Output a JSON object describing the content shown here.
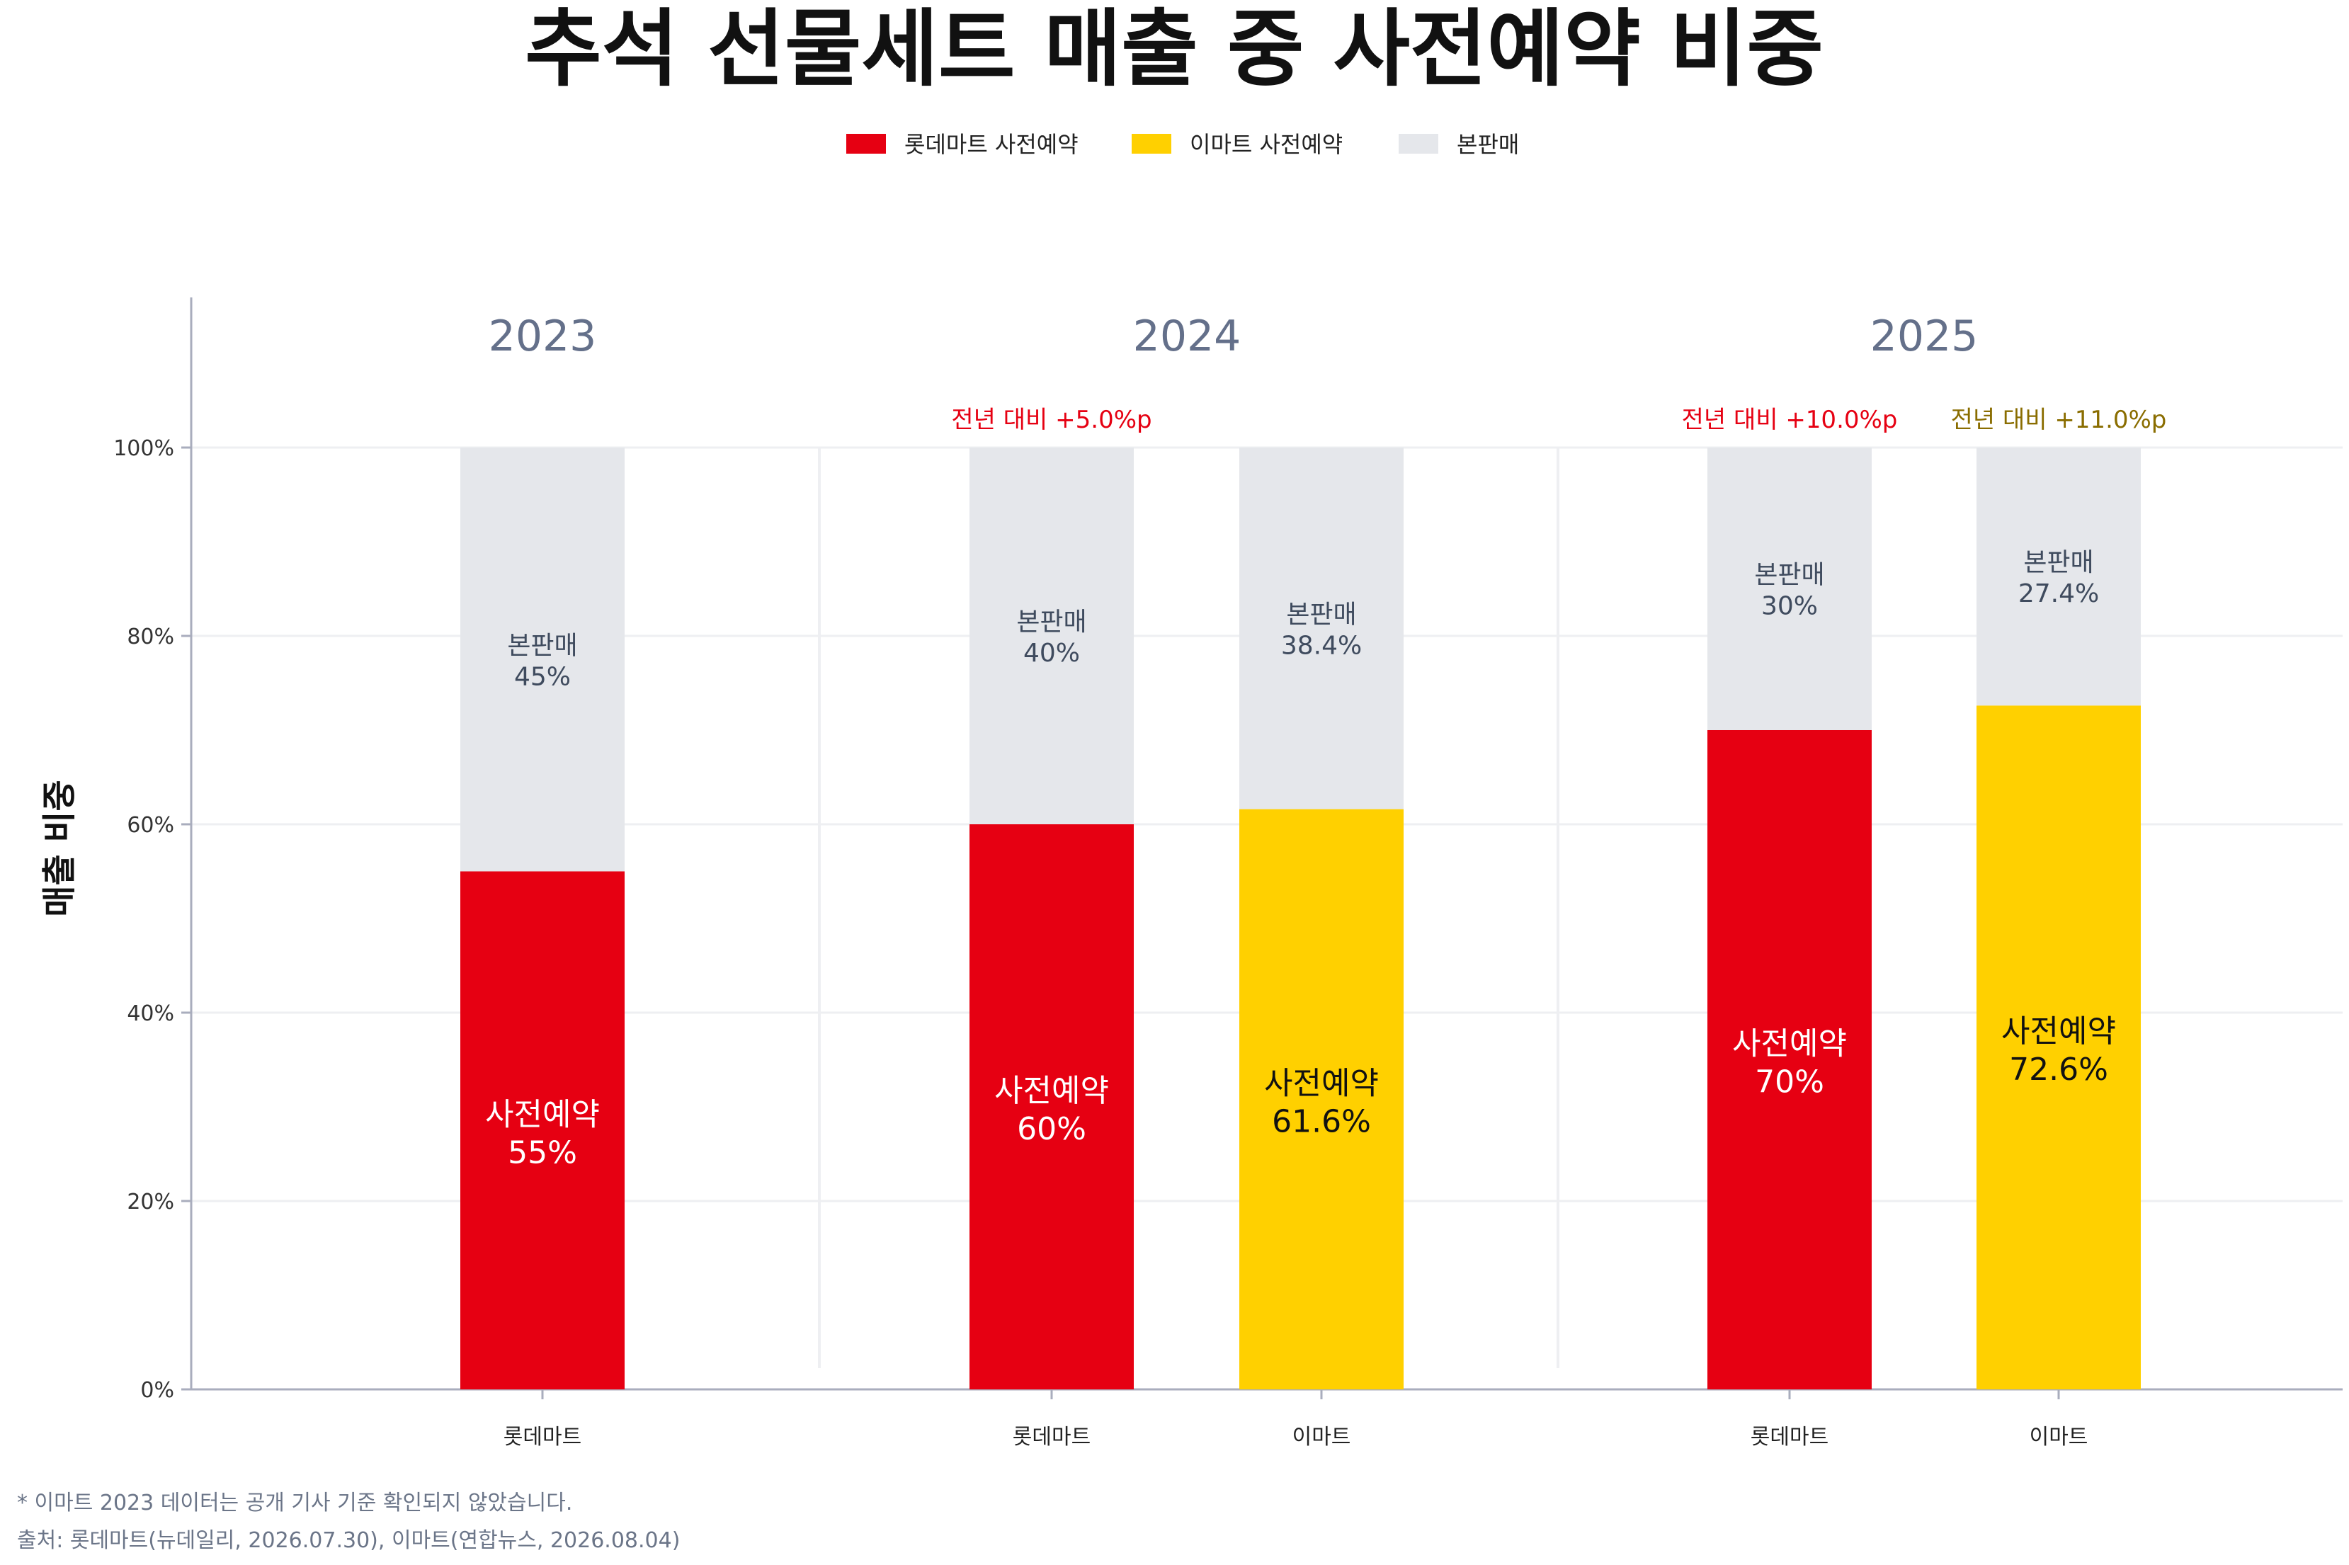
{
  "chart_data": {
    "type": "bar",
    "stacked": true,
    "title": "추석 선물세트 매출 중 사전예약 비중",
    "ylabel": "매출 비중",
    "ylim": [
      0,
      100
    ],
    "yticks": [
      "0%",
      "20%",
      "40%",
      "60%",
      "80%",
      "100%"
    ],
    "grid": true,
    "legend": {
      "placement": "top-center",
      "items": [
        {
          "label": "롯데마트 사전예약",
          "color": "#e60012"
        },
        {
          "label": "이마트 사전예약",
          "color": "#ffd000"
        },
        {
          "label": "본판매",
          "color": "#e5e7eb"
        }
      ]
    },
    "groups": [
      {
        "year": "2023",
        "delta_labels": [],
        "bars": [
          {
            "category": "롯데마트",
            "preorder": 55,
            "preorder_text": "55%",
            "main": 45,
            "main_text": "45%",
            "color": "#e60012"
          }
        ]
      },
      {
        "year": "2024",
        "delta_labels": [
          {
            "text": "전년 대비 +5.0%p",
            "color": "#e60012",
            "bar": 0
          }
        ],
        "bars": [
          {
            "category": "롯데마트",
            "preorder": 60,
            "preorder_text": "60%",
            "main": 40,
            "main_text": "40%",
            "color": "#e60012"
          },
          {
            "category": "이마트",
            "preorder": 61.6,
            "preorder_text": "61.6%",
            "main": 38.4,
            "main_text": "38.4%",
            "color": "#ffd000"
          }
        ]
      },
      {
        "year": "2025",
        "delta_labels": [
          {
            "text": "전년 대비 +10.0%p",
            "color": "#e60012",
            "bar": 0
          },
          {
            "text": "전년 대비 +11.0%p",
            "color": "#8a6d00",
            "bar": 1
          }
        ],
        "bars": [
          {
            "category": "롯데마트",
            "preorder": 70,
            "preorder_text": "70%",
            "main": 30,
            "main_text": "30%",
            "color": "#e60012"
          },
          {
            "category": "이마트",
            "preorder": 72.6,
            "preorder_text": "72.6%",
            "main": 27.4,
            "main_text": "27.4%",
            "color": "#ffd000"
          }
        ]
      }
    ],
    "segment_names": {
      "preorder": "사전예약",
      "main": "본판매"
    },
    "notes": [
      "* 이마트 2023 데이터는 공개 기사 기준 확인되지 않았습니다.",
      "출처: 롯데마트(뉴데일리, 2026.07.30), 이마트(연합뉴스, 2026.08.04)"
    ],
    "colors": {
      "grey_segment": "#e5e7eb",
      "axis": "#a9adbd",
      "grid": "#eeeff2",
      "year_text": "#64708a"
    }
  }
}
